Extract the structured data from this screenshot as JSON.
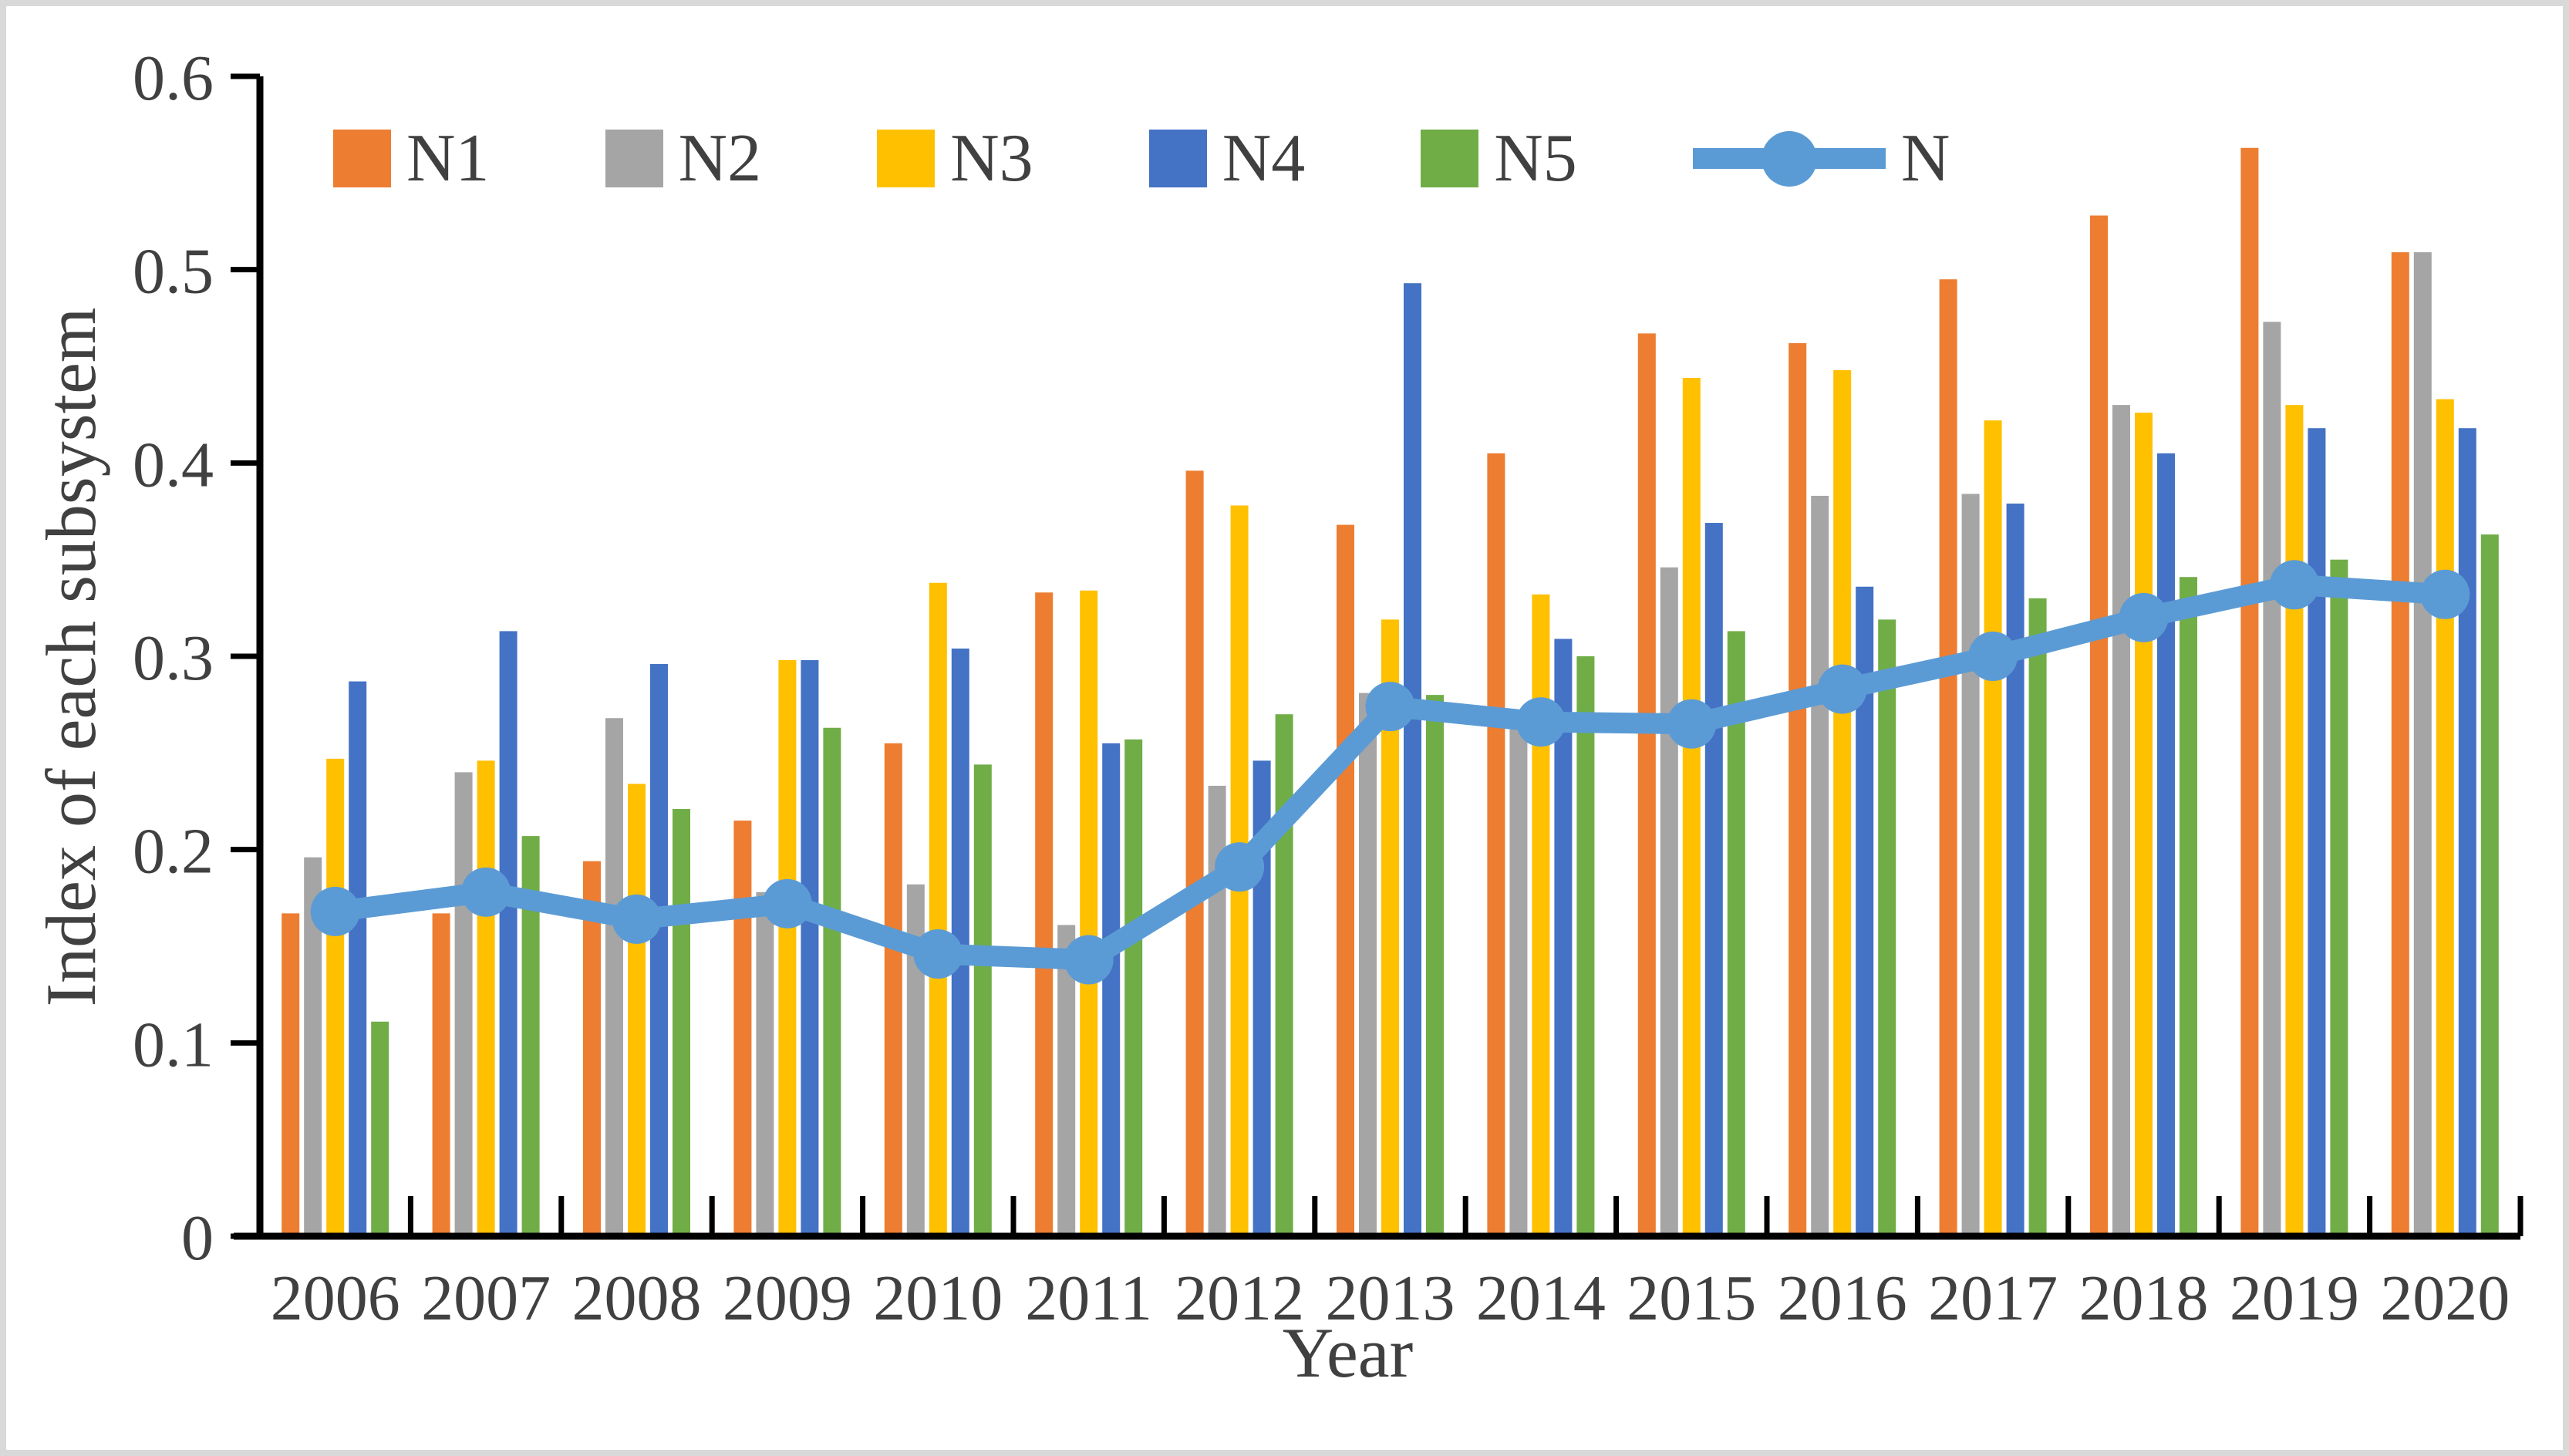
{
  "figure": {
    "background": "#ffffff",
    "border_color": "#d9d9d9",
    "text_color": "#404040",
    "axis_color": "#000000"
  },
  "chart_data": {
    "type": "bar+line",
    "title": "",
    "xlabel": "Year",
    "ylabel": "Index of each subsystem",
    "ylim": [
      0,
      0.6
    ],
    "grid": false,
    "legend_position": "top",
    "ytick_labels": [
      "0",
      "0.1",
      "0.2",
      "0.3",
      "0.4",
      "0.5",
      "0.6"
    ],
    "ytick_values": [
      0,
      0.1,
      0.2,
      0.3,
      0.4,
      0.5,
      0.6
    ],
    "categories": [
      "2006",
      "2007",
      "2008",
      "2009",
      "2010",
      "2011",
      "2012",
      "2013",
      "2014",
      "2015",
      "2016",
      "2017",
      "2018",
      "2019",
      "2020"
    ],
    "series": [
      {
        "name": "N1",
        "color": "#ED7D31",
        "values": [
          0.167,
          0.167,
          0.194,
          0.215,
          0.255,
          0.333,
          0.396,
          0.368,
          0.405,
          0.467,
          0.462,
          0.495,
          0.528,
          0.563,
          0.509
        ]
      },
      {
        "name": "N2",
        "color": "#A5A5A5",
        "values": [
          0.196,
          0.24,
          0.268,
          0.178,
          0.182,
          0.161,
          0.233,
          0.281,
          0.265,
          0.346,
          0.383,
          0.384,
          0.43,
          0.473,
          0.509
        ]
      },
      {
        "name": "N3",
        "color": "#FFC000",
        "values": [
          0.247,
          0.246,
          0.234,
          0.298,
          0.338,
          0.334,
          0.378,
          0.319,
          0.332,
          0.444,
          0.448,
          0.422,
          0.426,
          0.43,
          0.433
        ]
      },
      {
        "name": "N4",
        "color": "#4472C4",
        "values": [
          0.287,
          0.313,
          0.296,
          0.298,
          0.304,
          0.255,
          0.246,
          0.493,
          0.309,
          0.369,
          0.336,
          0.379,
          0.405,
          0.418,
          0.418
        ]
      },
      {
        "name": "N5",
        "color": "#70AD47",
        "values": [
          0.111,
          0.207,
          0.221,
          0.263,
          0.244,
          0.257,
          0.27,
          0.28,
          0.3,
          0.313,
          0.319,
          0.33,
          0.341,
          0.35,
          0.363
        ]
      }
    ],
    "line_series": {
      "name": "N",
      "color": "#5B9BD5",
      "values": [
        0.168,
        0.178,
        0.164,
        0.172,
        0.146,
        0.143,
        0.191,
        0.274,
        0.266,
        0.265,
        0.283,
        0.3,
        0.32,
        0.337,
        0.332
      ]
    }
  }
}
